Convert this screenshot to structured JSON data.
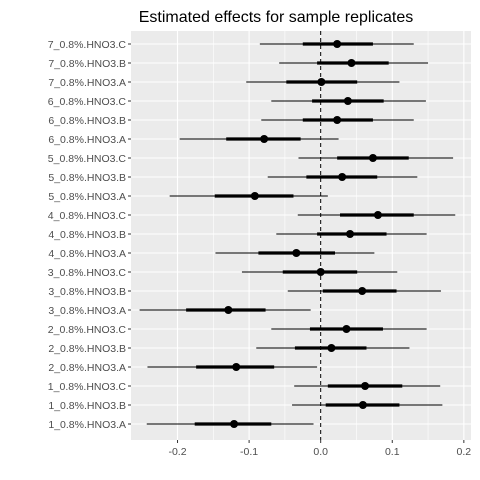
{
  "chart_data": {
    "type": "forest",
    "title": "Estimated effects for sample replicates",
    "xlabel": "",
    "ylabel": "",
    "xlim": [
      -0.265,
      0.21
    ],
    "x_ticks": [
      -0.2,
      -0.1,
      0.0,
      0.1,
      0.2
    ],
    "x_tick_labels": [
      "-0.2",
      "-0.1",
      "0.0",
      "0.1",
      "0.2"
    ],
    "reference_line": {
      "x": 0.0,
      "style": "dashed"
    },
    "grid": true,
    "categories": [
      "7_0.8%.HNO3.C",
      "7_0.8%.HNO3.B",
      "7_0.8%.HNO3.A",
      "6_0.8%.HNO3.C",
      "6_0.8%.HNO3.B",
      "6_0.8%.HNO3.A",
      "5_0.8%.HNO3.C",
      "5_0.8%.HNO3.B",
      "5_0.8%.HNO3.A",
      "4_0.8%.HNO3.C",
      "4_0.8%.HNO3.B",
      "4_0.8%.HNO3.A",
      "3_0.8%.HNO3.C",
      "3_0.8%.HNO3.B",
      "3_0.8%.HNO3.A",
      "2_0.8%.HNO3.C",
      "2_0.8%.HNO3.B",
      "2_0.8%.HNO3.A",
      "1_0.8%.HNO3.C",
      "1_0.8%.HNO3.B",
      "1_0.8%.HNO3.A"
    ],
    "estimate": [
      0.023,
      0.043,
      0.001,
      0.038,
      0.023,
      -0.079,
      0.073,
      0.03,
      -0.092,
      0.08,
      0.041,
      -0.034,
      0.0,
      0.058,
      -0.129,
      0.036,
      0.015,
      -0.118,
      0.062,
      0.059,
      -0.121
    ],
    "inner_low": [
      -0.025,
      -0.005,
      -0.048,
      -0.012,
      -0.025,
      -0.132,
      0.023,
      -0.02,
      -0.148,
      0.027,
      -0.005,
      -0.087,
      -0.053,
      0.003,
      -0.188,
      -0.015,
      -0.036,
      -0.174,
      0.01,
      0.007,
      -0.176
    ],
    "inner_high": [
      0.073,
      0.095,
      0.051,
      0.088,
      0.073,
      -0.028,
      0.123,
      0.079,
      -0.038,
      0.13,
      0.092,
      0.02,
      0.051,
      0.106,
      -0.077,
      0.087,
      0.064,
      -0.065,
      0.114,
      0.11,
      -0.069
    ],
    "outer_low": [
      -0.085,
      -0.058,
      -0.104,
      -0.069,
      -0.083,
      -0.197,
      -0.031,
      -0.074,
      -0.211,
      -0.032,
      -0.062,
      -0.147,
      -0.11,
      -0.046,
      -0.253,
      -0.069,
      -0.09,
      -0.242,
      -0.037,
      -0.04,
      -0.243
    ],
    "outer_high": [
      0.13,
      0.15,
      0.11,
      0.147,
      0.13,
      0.025,
      0.185,
      0.135,
      0.01,
      0.188,
      0.148,
      0.075,
      0.107,
      0.168,
      -0.014,
      0.148,
      0.124,
      -0.005,
      0.167,
      0.17,
      -0.01
    ]
  }
}
